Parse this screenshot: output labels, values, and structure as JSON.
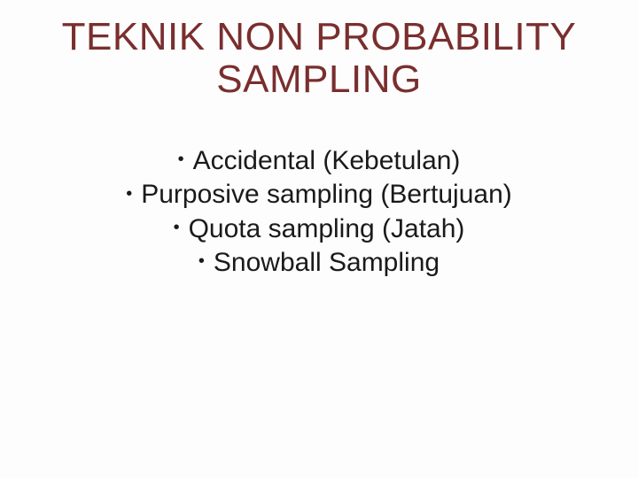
{
  "slide": {
    "background_color": "#fcfdfc",
    "title": {
      "line1": "TEKNIK NON PROBABILITY",
      "line2": "SAMPLING",
      "color": "#7a2e2e",
      "fontsize_pt": 33,
      "font_family": "Comic Sans MS",
      "align": "center"
    },
    "bullets": {
      "color": "#1a1a1a",
      "fontsize_pt": 22,
      "font_family": "Comic Sans MS",
      "align": "center",
      "marker": "•",
      "items": [
        "Accidental (Kebetulan)",
        "Purposive sampling (Bertujuan)",
        "Quota sampling (Jatah)",
        "Snowball Sampling"
      ]
    }
  }
}
